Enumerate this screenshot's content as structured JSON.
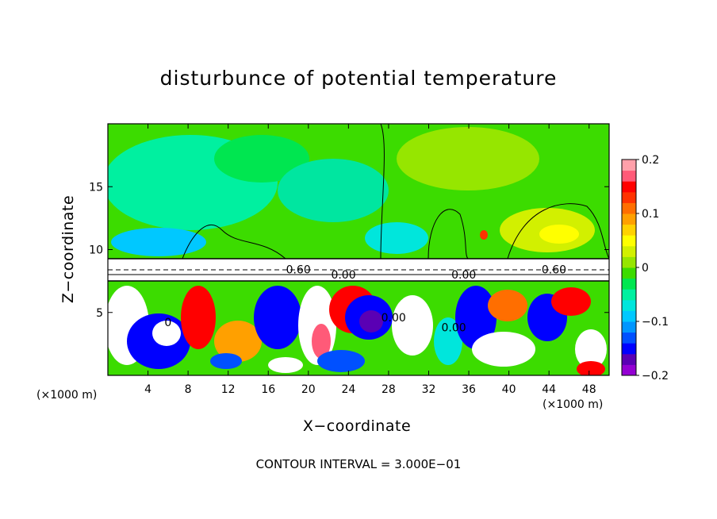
{
  "chart_data": {
    "type": "heatmap",
    "title": "disturbunce of potential temperature",
    "xlabel": "X−coordinate",
    "ylabel": "Z−coordinate",
    "x_unit": "(×1000 m)",
    "xlim": [
      0,
      50
    ],
    "ylim": [
      0,
      20
    ],
    "x_ticks": [
      4,
      8,
      12,
      16,
      20,
      24,
      28,
      32,
      36,
      40,
      44,
      48
    ],
    "y_ticks": [
      5,
      10,
      15
    ],
    "colorbar": {
      "range": [
        -0.2,
        0.2
      ],
      "tick_values": [
        0.2,
        0.1,
        0,
        -0.1,
        -0.2
      ],
      "tick_labels": [
        "0.2",
        "0.1",
        "0",
        "−0.1",
        "−0.2"
      ],
      "colors": [
        "#9400d3",
        "#5a00b4",
        "#0000ff",
        "#0050ff",
        "#0096ff",
        "#00c8ff",
        "#00e6dc",
        "#00f0a0",
        "#00e650",
        "#3cdc00",
        "#96e600",
        "#d2f000",
        "#ffff00",
        "#ffd200",
        "#ffa000",
        "#ff6e00",
        "#ff3200",
        "#ff0000",
        "#ff5a78",
        "#ffa0aa"
      ]
    },
    "contour_labels": [
      {
        "text": "0.60",
        "x": 19.0,
        "z": 8.1
      },
      {
        "text": "0.00",
        "x": 23.5,
        "z": 7.7
      },
      {
        "text": "0.00",
        "x": 35.5,
        "z": 7.7
      },
      {
        "text": "0.60",
        "x": 44.5,
        "z": 8.1
      },
      {
        "text": "0.00",
        "x": 28.5,
        "z": 4.3
      },
      {
        "text": "0.00",
        "x": 34.5,
        "z": 3.5
      },
      {
        "text": "0",
        "x": 6.0,
        "z": 3.9
      }
    ],
    "footnote": "CONTOUR INTERVAL = 3.000E−01"
  }
}
